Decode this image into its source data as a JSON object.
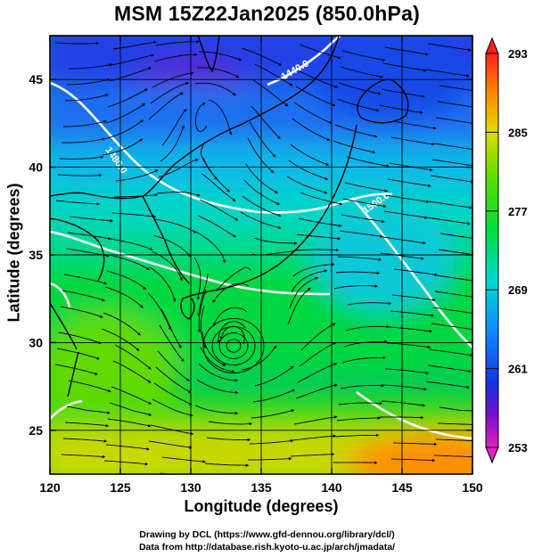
{
  "header": {
    "title": "MSM 15Z22Jan2025 (850.0hPa)"
  },
  "axes": {
    "xlabel": "Longitude (degrees)",
    "ylabel": "Latitude  (degrees)",
    "x_ticks": [
      "120",
      "125",
      "130",
      "135",
      "140",
      "145",
      "150"
    ],
    "y_ticks": [
      "25",
      "30",
      "35",
      "40",
      "45"
    ]
  },
  "colorbar": {
    "tick_labels": [
      "293",
      "285",
      "277",
      "269",
      "261",
      "253"
    ]
  },
  "contour_labels": [
    "1440.0",
    "1480.0",
    "1500.0"
  ],
  "footer": {
    "credit_drawing": "Drawing by DCL (https://www.gfd-dennou.org/library/dcl/)",
    "credit_data": "Data from http://database.rish.kyoto-u.ac.jp/arch/jmadata/"
  },
  "chart_data": {
    "type": "heatmap",
    "title": "MSM 15Z22Jan2025 (850.0hPa)",
    "xlabel": "Longitude (degrees)",
    "ylabel": "Latitude  (degrees)",
    "xlim": [
      120,
      150
    ],
    "ylim": [
      22.5,
      47.5
    ],
    "x_ticks": [
      120,
      125,
      130,
      135,
      140,
      145,
      150
    ],
    "y_ticks": [
      25,
      30,
      35,
      40,
      45
    ],
    "grid": true,
    "colorbar": {
      "min": 253,
      "max": 293,
      "ticks": [
        293,
        285,
        277,
        269,
        261,
        253
      ]
    },
    "colors": {
      "cold": "#7a10c8",
      "blue": "#1530e0",
      "cyan": "#00d8d8",
      "green": "#00dd30",
      "yellow": "#dedc00",
      "orange": "#ff8800",
      "warm": "#ff2020"
    },
    "contours": [
      {
        "label": "1440.0",
        "value": 1440
      },
      {
        "label": "1480.0",
        "value": 1480
      },
      {
        "label": "1500.0",
        "value": 1500
      }
    ],
    "overlays": [
      "coastlines",
      "streamlines",
      "geopotential-height-contours"
    ]
  }
}
